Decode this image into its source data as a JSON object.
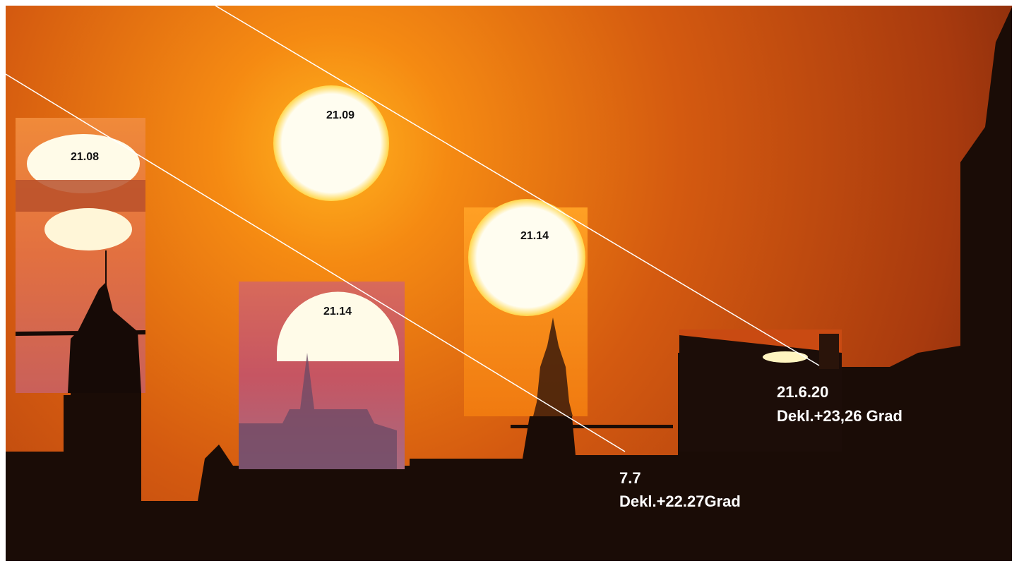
{
  "sun_times": [
    "21.09",
    "21.08",
    "21.14",
    "21.14"
  ],
  "annotations": [
    {
      "date": "21.6.20",
      "declination": "Dekl.+23,26 Grad"
    },
    {
      "date": "7.7",
      "declination": "Dekl.+22.27Grad"
    }
  ]
}
